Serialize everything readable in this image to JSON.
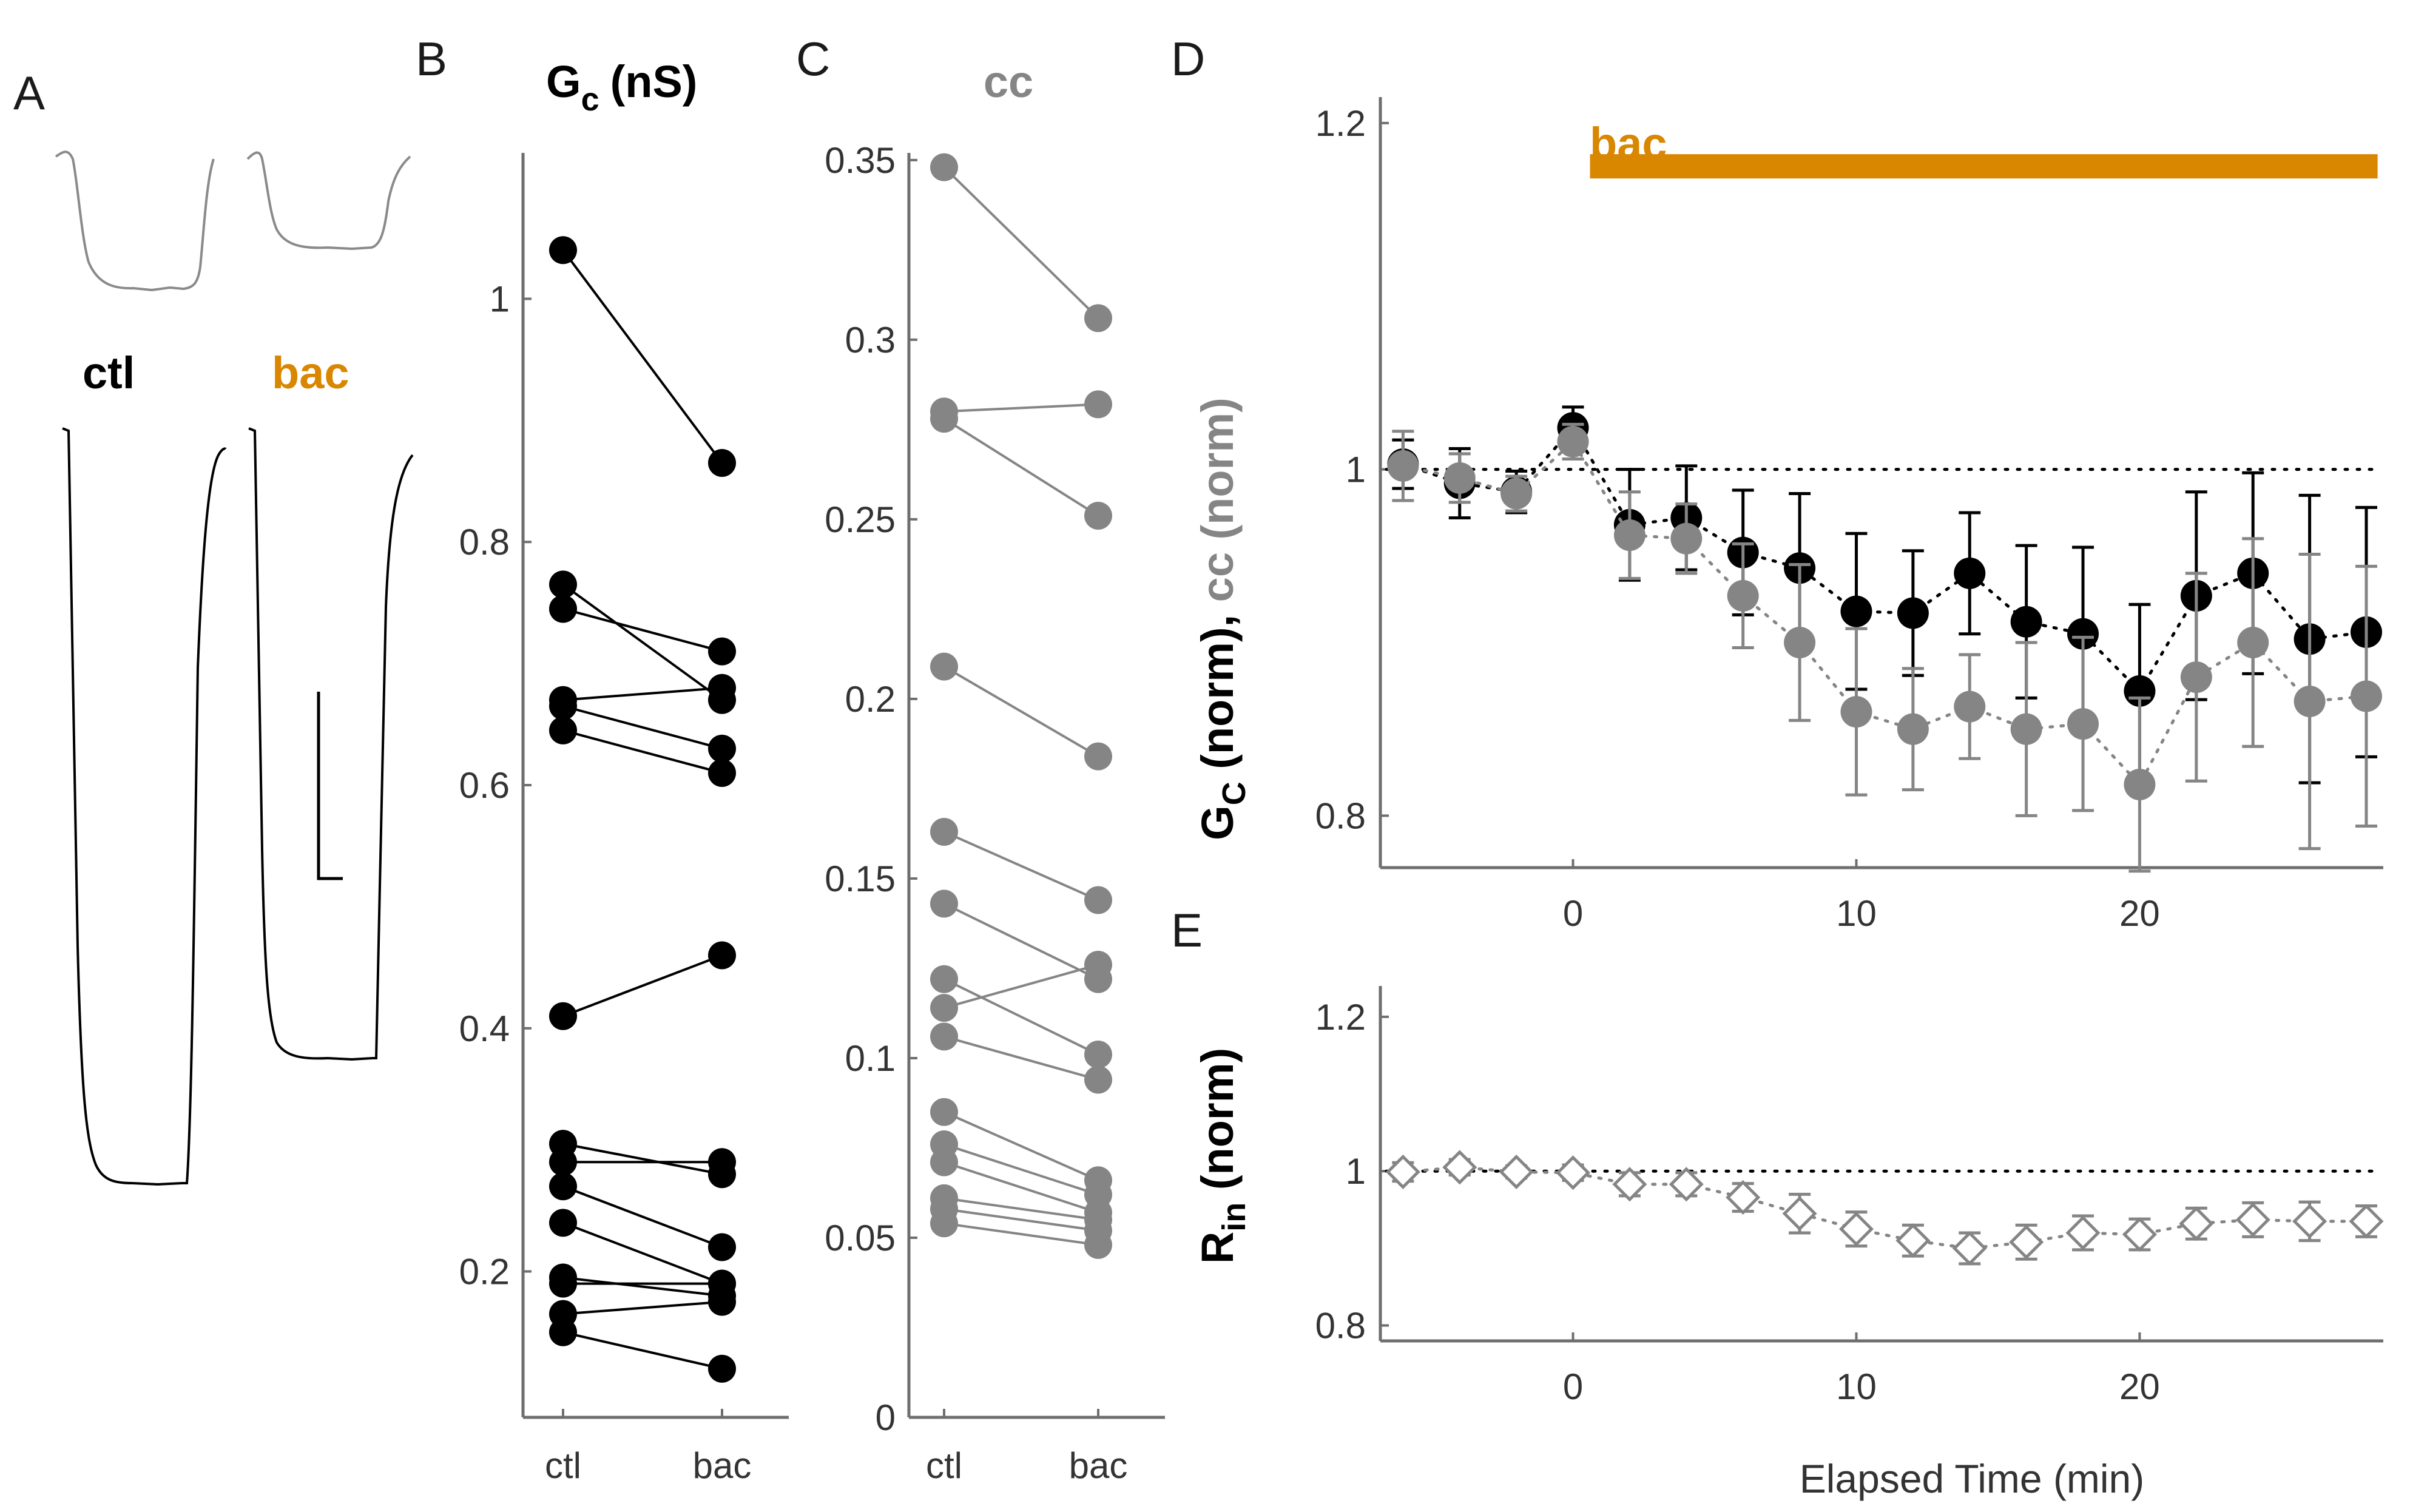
{
  "colors": {
    "black": "#000000",
    "gray": "#858585",
    "orange": "#d98600",
    "axis": "#6e6e6e",
    "trace_gray": "#8a8a8a"
  },
  "panel_letters": {
    "a": "A",
    "b": "B",
    "c": "C",
    "d": "D",
    "e": "E"
  },
  "panel_a": {
    "label_ctl": "ctl",
    "label_bac": "bac"
  },
  "chart_data": [
    {
      "id": "B",
      "type": "line",
      "title_main": "G",
      "title_sub": "c",
      "title_unit": "(nS)",
      "categories": [
        "ctl",
        "bac"
      ],
      "ylim": [
        0.08,
        1.12
      ],
      "yticks": [
        0.2,
        0.4,
        0.6,
        0.8,
        1
      ],
      "ytick_labels": [
        "0.2",
        "0.4",
        "0.6",
        "0.8",
        "1"
      ],
      "color": "#000000",
      "pairs": [
        [
          1.04,
          0.865
        ],
        [
          0.765,
          0.67
        ],
        [
          0.745,
          0.71
        ],
        [
          0.67,
          0.68
        ],
        [
          0.665,
          0.63
        ],
        [
          0.645,
          0.61
        ],
        [
          0.41,
          0.46
        ],
        [
          0.305,
          0.28
        ],
        [
          0.29,
          0.29
        ],
        [
          0.27,
          0.22
        ],
        [
          0.24,
          0.19
        ],
        [
          0.195,
          0.18
        ],
        [
          0.19,
          0.19
        ],
        [
          0.165,
          0.175
        ],
        [
          0.15,
          0.12
        ]
      ]
    },
    {
      "id": "C",
      "type": "line",
      "title": "cc",
      "categories": [
        "ctl",
        "bac"
      ],
      "ylim": [
        0,
        0.352
      ],
      "yticks": [
        0,
        0.05,
        0.1,
        0.15,
        0.2,
        0.25,
        0.3,
        0.35
      ],
      "ytick_labels": [
        "0",
        "0.05",
        "0.1",
        "0.15",
        "0.2",
        "0.25",
        "0.3",
        "0.35"
      ],
      "color": "#858585",
      "pairs": [
        [
          0.348,
          0.306
        ],
        [
          0.28,
          0.282
        ],
        [
          0.278,
          0.251
        ],
        [
          0.209,
          0.184
        ],
        [
          0.163,
          0.144
        ],
        [
          0.143,
          0.122
        ],
        [
          0.122,
          0.101
        ],
        [
          0.114,
          0.126
        ],
        [
          0.106,
          0.094
        ],
        [
          0.085,
          0.066
        ],
        [
          0.076,
          0.062
        ],
        [
          0.071,
          0.057
        ],
        [
          0.061,
          0.055
        ],
        [
          0.058,
          0.052
        ],
        [
          0.054,
          0.048
        ]
      ]
    },
    {
      "id": "D",
      "type": "scatter",
      "ylabel_main": "G",
      "ylabel_sub": "C",
      "ylabel_rest": " (norm),",
      "ylabel_cc": " cc",
      "ylabel_cc_rest": " (norm)",
      "xlim": [
        -6.8,
        28.6
      ],
      "ylim": [
        0.77,
        1.215
      ],
      "xticks": [
        0,
        10,
        20
      ],
      "xtick_labels": [
        "0",
        "10",
        "20"
      ],
      "yticks": [
        0.8,
        1,
        1.2
      ],
      "ytick_labels": [
        "0.8",
        "1",
        "1.2"
      ],
      "reference_line": 1,
      "bar": {
        "label": "bac",
        "x_start": 0.6,
        "x_end": 28.4,
        "y": 1.175
      },
      "series": [
        {
          "name": "G_C",
          "color": "#000000",
          "x": [
            -6,
            -4,
            -2,
            0,
            2,
            4,
            6,
            8,
            10,
            12,
            14,
            16,
            18,
            20,
            22,
            24,
            26,
            28
          ],
          "y": [
            1.003,
            0.992,
            0.987,
            1.024,
            0.968,
            0.972,
            0.952,
            0.943,
            0.918,
            0.917,
            0.94,
            0.912,
            0.905,
            0.872,
            0.927,
            0.94,
            0.902,
            0.906
          ],
          "err": [
            0.014,
            0.02,
            0.012,
            0.012,
            0.032,
            0.03,
            0.036,
            0.043,
            0.045,
            0.036,
            0.035,
            0.044,
            0.05,
            0.05,
            0.06,
            0.058,
            0.083,
            0.072
          ]
        },
        {
          "name": "cc",
          "color": "#858585",
          "x": [
            -6,
            -4,
            -2,
            0,
            2,
            4,
            6,
            8,
            10,
            12,
            14,
            16,
            18,
            20,
            22,
            24,
            26,
            28
          ],
          "y": [
            1.002,
            0.995,
            0.986,
            1.016,
            0.962,
            0.96,
            0.927,
            0.9,
            0.86,
            0.85,
            0.863,
            0.85,
            0.853,
            0.818,
            0.88,
            0.9,
            0.866,
            0.869
          ],
          "err": [
            0.02,
            0.014,
            0.01,
            0.01,
            0.025,
            0.02,
            0.03,
            0.045,
            0.048,
            0.035,
            0.03,
            0.05,
            0.05,
            0.05,
            0.06,
            0.06,
            0.085,
            0.075
          ]
        }
      ]
    },
    {
      "id": "E",
      "type": "scatter",
      "ylabel_main": "R",
      "ylabel_sub": "in",
      "ylabel_rest": " (norm)",
      "xlabel": "Elapsed Time (min)",
      "xlim": [
        -6.8,
        28.6
      ],
      "ylim": [
        0.78,
        1.24
      ],
      "xticks": [
        0,
        10,
        20
      ],
      "xtick_labels": [
        "0",
        "10",
        "20"
      ],
      "yticks": [
        0.8,
        1,
        1.2
      ],
      "ytick_labels": [
        "0.8",
        "1",
        "1.2"
      ],
      "reference_line": 1,
      "series": [
        {
          "name": "R_in",
          "color": "#858585",
          "marker": "open-diamond",
          "x": [
            -6,
            -4,
            -2,
            0,
            2,
            4,
            6,
            8,
            10,
            12,
            14,
            16,
            18,
            20,
            22,
            24,
            26,
            28
          ],
          "y": [
            0.999,
            1.005,
            0.999,
            0.998,
            0.983,
            0.983,
            0.966,
            0.945,
            0.925,
            0.91,
            0.9,
            0.908,
            0.92,
            0.918,
            0.932,
            0.937,
            0.935,
            0.935
          ],
          "err": [
            0.012,
            0.01,
            0.008,
            0.01,
            0.015,
            0.015,
            0.018,
            0.025,
            0.022,
            0.02,
            0.02,
            0.022,
            0.022,
            0.02,
            0.02,
            0.022,
            0.025,
            0.02
          ]
        }
      ]
    }
  ]
}
